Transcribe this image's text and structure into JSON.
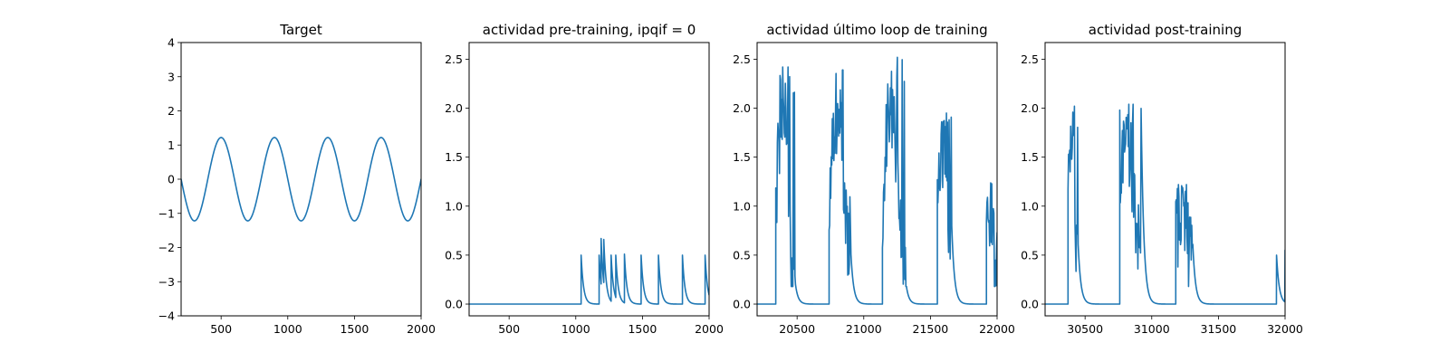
{
  "figure": {
    "background": "#ffffff"
  },
  "chart_data": [
    {
      "type": "line",
      "title": "Target",
      "xlim": [
        200,
        2000
      ],
      "ylim": [
        -4,
        4
      ],
      "xticks": [
        500,
        1000,
        1500,
        2000
      ],
      "yticks": [
        -4,
        -3,
        -2,
        -1,
        0,
        1,
        2,
        3,
        4
      ],
      "yticks_format": "int",
      "series": [
        {
          "color": "#1f77b4",
          "kind": "sine",
          "amplitude": 1.22,
          "period": 400,
          "phase_x": 100,
          "x_start": 200,
          "x_end": 2000
        }
      ]
    },
    {
      "type": "line",
      "title": "actividad pre-training, ipqif = 0",
      "xlim": [
        200,
        2000
      ],
      "ylim": [
        -0.12,
        2.67
      ],
      "xticks": [
        500,
        1000,
        1500,
        2000
      ],
      "yticks": [
        0.0,
        0.5,
        1.0,
        1.5,
        2.0,
        2.5
      ],
      "yticks_format": "1dp",
      "series": [
        {
          "color": "#1f77b4",
          "kind": "decay_spikes",
          "baseline": 0,
          "x_start": 200,
          "x_end": 2000,
          "decay_tau": 18,
          "spikes": [
            [
              1040,
              0.5
            ],
            [
              1175,
              0.5
            ],
            [
              1190,
              0.67
            ],
            [
              1210,
              0.66
            ],
            [
              1265,
              0.5
            ],
            [
              1300,
              0.5
            ],
            [
              1365,
              0.51
            ],
            [
              1490,
              0.5
            ],
            [
              1620,
              0.5
            ],
            [
              1800,
              0.5
            ],
            [
              1970,
              0.5
            ]
          ]
        }
      ]
    },
    {
      "type": "line",
      "title": "actividad último loop de training",
      "xlim": [
        20200,
        22000
      ],
      "ylim": [
        -0.12,
        2.67
      ],
      "xticks": [
        20500,
        21000,
        21500,
        22000
      ],
      "yticks": [
        0.0,
        0.5,
        1.0,
        1.5,
        2.0,
        2.5
      ],
      "yticks_format": "1dp",
      "series": [
        {
          "color": "#1f77b4",
          "kind": "noisy_bursts",
          "baseline": 0,
          "x_start": 20200,
          "x_end": 22000,
          "decay_tau": 20,
          "step": 4,
          "bursts": [
            {
              "start": 20340,
              "end": 20490,
              "rise_from": 0.55,
              "peak": 2.42
            },
            {
              "start": 20740,
              "end": 20905,
              "rise_from": 0.85,
              "peak": 2.39
            },
            {
              "start": 21140,
              "end": 21320,
              "rise_from": 0.65,
              "peak": 2.52
            },
            {
              "start": 21550,
              "end": 21660,
              "rise_from": 0.95,
              "peak": 1.95
            },
            {
              "start": 21920,
              "end": 22000,
              "rise_from": 0.45,
              "peak": 1.25
            }
          ]
        }
      ]
    },
    {
      "type": "line",
      "title": "actividad post-training",
      "xlim": [
        30200,
        32000
      ],
      "ylim": [
        -0.12,
        2.67
      ],
      "xticks": [
        30500,
        31000,
        31500,
        32000
      ],
      "yticks": [
        0.0,
        0.5,
        1.0,
        1.5,
        2.0,
        2.5
      ],
      "yticks_format": "1dp",
      "series": [
        {
          "color": "#1f77b4",
          "kind": "noisy_bursts",
          "baseline": 0,
          "x_start": 30200,
          "x_end": 32000,
          "decay_tau": 20,
          "step": 4,
          "bursts": [
            {
              "start": 30370,
              "end": 30450,
              "rise_from": 0.45,
              "peak": 2.02
            },
            {
              "start": 30760,
              "end": 30920,
              "rise_from": 0.75,
              "peak": 2.04
            },
            {
              "start": 31180,
              "end": 31310,
              "rise_from": 0.55,
              "peak": 1.22
            }
          ],
          "spikes": [
            [
              31935,
              0.5
            ],
            [
              31998,
              0.55
            ]
          ]
        }
      ]
    }
  ]
}
